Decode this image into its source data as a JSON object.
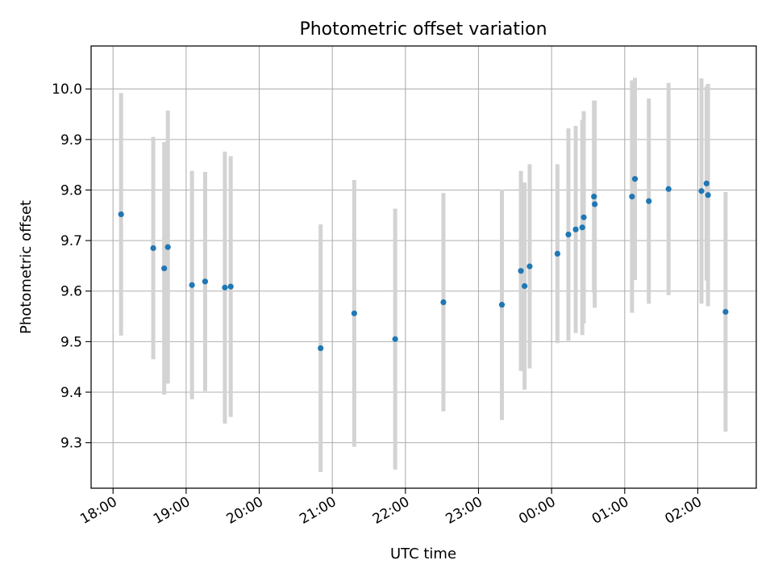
{
  "chart_data": {
    "type": "scatter",
    "title": "Photometric offset variation",
    "xlabel": "UTC time",
    "ylabel": "Photometric offset",
    "grid": true,
    "x_unit": "hours since 18:00 UTC",
    "xlim": [
      -0.3,
      8.8
    ],
    "ylim": [
      9.21,
      10.085
    ],
    "x_ticks": [
      {
        "value": 0,
        "label": "18:00"
      },
      {
        "value": 1,
        "label": "19:00"
      },
      {
        "value": 2,
        "label": "20:00"
      },
      {
        "value": 3,
        "label": "21:00"
      },
      {
        "value": 4,
        "label": "22:00"
      },
      {
        "value": 5,
        "label": "23:00"
      },
      {
        "value": 6,
        "label": "00:00"
      },
      {
        "value": 7,
        "label": "01:00"
      },
      {
        "value": 8,
        "label": "02:00"
      }
    ],
    "y_ticks": [
      {
        "value": 9.3,
        "label": "9.3"
      },
      {
        "value": 9.4,
        "label": "9.4"
      },
      {
        "value": 9.5,
        "label": "9.5"
      },
      {
        "value": 9.6,
        "label": "9.6"
      },
      {
        "value": 9.7,
        "label": "9.7"
      },
      {
        "value": 9.8,
        "label": "9.8"
      },
      {
        "value": 9.9,
        "label": "9.9"
      },
      {
        "value": 10.0,
        "label": "10.0"
      }
    ],
    "colors": {
      "point": "#1f77b4",
      "errorbar": "#d3d3d3",
      "grid": "#b0b0b0",
      "axes": "#000000"
    },
    "series": [
      {
        "name": "offset",
        "points": [
          {
            "x": 0.11,
            "y": 9.752,
            "err": 0.24
          },
          {
            "x": 0.55,
            "y": 9.685,
            "err": 0.22
          },
          {
            "x": 0.7,
            "y": 9.645,
            "err": 0.25
          },
          {
            "x": 0.75,
            "y": 9.687,
            "err": 0.27
          },
          {
            "x": 1.08,
            "y": 9.612,
            "err": 0.226
          },
          {
            "x": 1.26,
            "y": 9.619,
            "err": 0.217
          },
          {
            "x": 1.53,
            "y": 9.607,
            "err": 0.269
          },
          {
            "x": 1.61,
            "y": 9.609,
            "err": 0.258
          },
          {
            "x": 2.84,
            "y": 9.487,
            "err": 0.245
          },
          {
            "x": 3.3,
            "y": 9.556,
            "err": 0.264
          },
          {
            "x": 3.86,
            "y": 9.505,
            "err": 0.258
          },
          {
            "x": 4.52,
            "y": 9.578,
            "err": 0.216
          },
          {
            "x": 5.32,
            "y": 9.573,
            "err": 0.228
          },
          {
            "x": 5.58,
            "y": 9.64,
            "err": 0.198
          },
          {
            "x": 5.63,
            "y": 9.61,
            "err": 0.205
          },
          {
            "x": 5.7,
            "y": 9.649,
            "err": 0.202
          },
          {
            "x": 6.08,
            "y": 9.674,
            "err": 0.177
          },
          {
            "x": 6.23,
            "y": 9.712,
            "err": 0.21
          },
          {
            "x": 6.33,
            "y": 9.722,
            "err": 0.205
          },
          {
            "x": 6.42,
            "y": 9.726,
            "err": 0.213
          },
          {
            "x": 6.44,
            "y": 9.746,
            "err": 0.21
          },
          {
            "x": 6.58,
            "y": 9.787,
            "err": 0.19
          },
          {
            "x": 6.59,
            "y": 9.772,
            "err": 0.205
          },
          {
            "x": 7.1,
            "y": 9.787,
            "err": 0.23
          },
          {
            "x": 7.14,
            "y": 9.822,
            "err": 0.2
          },
          {
            "x": 7.33,
            "y": 9.778,
            "err": 0.203
          },
          {
            "x": 7.6,
            "y": 9.802,
            "err": 0.21
          },
          {
            "x": 8.05,
            "y": 9.798,
            "err": 0.223
          },
          {
            "x": 8.12,
            "y": 9.813,
            "err": 0.192
          },
          {
            "x": 8.14,
            "y": 9.79,
            "err": 0.22
          },
          {
            "x": 8.38,
            "y": 9.559,
            "err": 0.237
          }
        ]
      }
    ]
  }
}
